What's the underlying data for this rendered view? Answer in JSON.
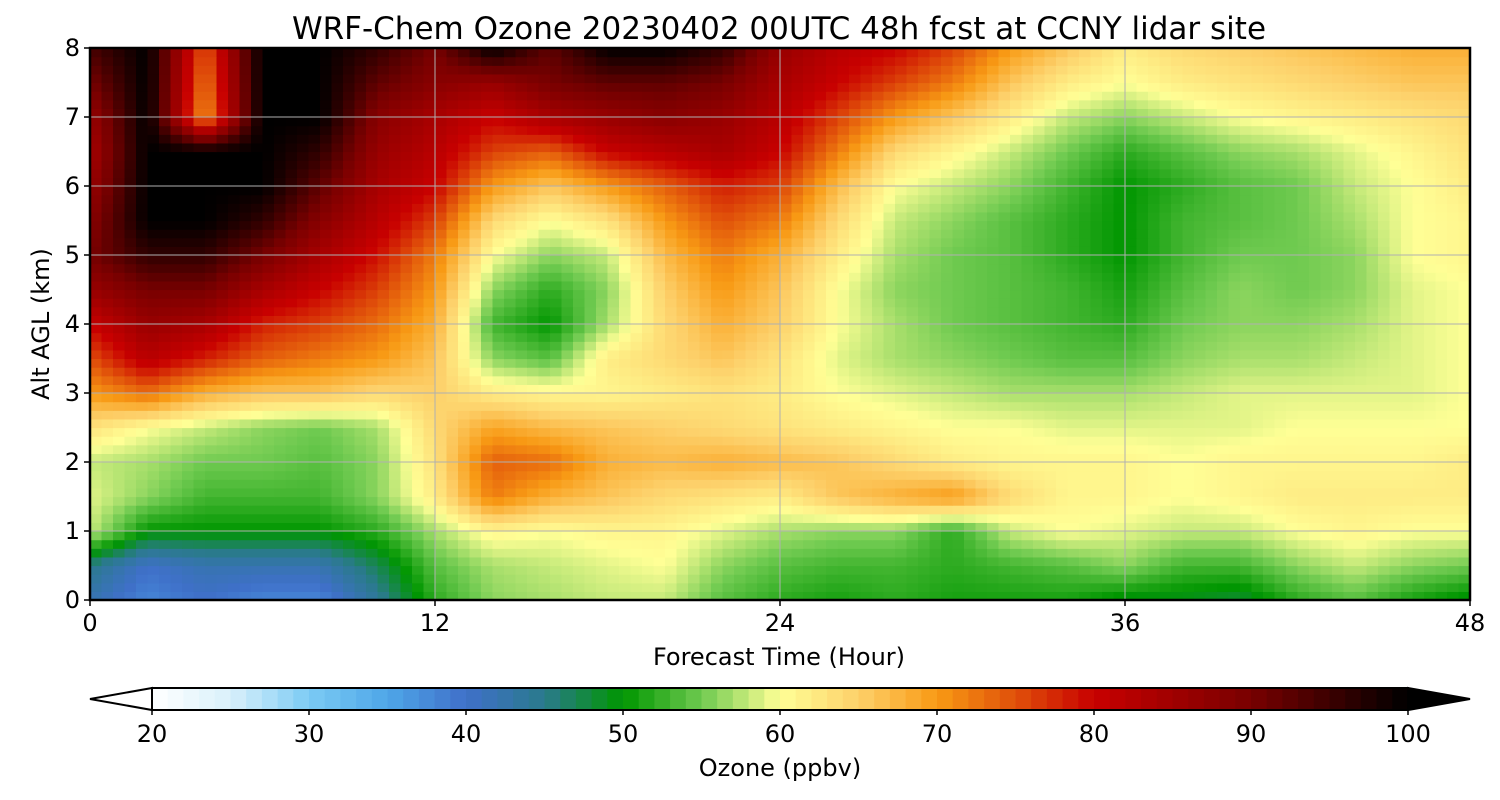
{
  "chart_data": {
    "type": "heatmap",
    "title": "WRF-Chem Ozone  20230402 00UTC 48h fcst at CCNY lidar site",
    "xlabel": "Forecast Time (Hour)",
    "ylabel": "Alt AGL (km)",
    "xlim": [
      0,
      48
    ],
    "ylim": [
      0,
      8
    ],
    "xticks": [
      "0",
      "12",
      "24",
      "36",
      "48"
    ],
    "yticks": [
      "0",
      "1",
      "2",
      "3",
      "4",
      "5",
      "6",
      "7",
      "8"
    ],
    "grid": true,
    "colorbar": {
      "label": "Ozone  (ppbv)",
      "range": [
        20,
        100
      ],
      "extend": "both",
      "ticks": [
        "20",
        "30",
        "40",
        "50",
        "60",
        "70",
        "80",
        "90",
        "100"
      ],
      "colors": {
        "20": "#ffffff",
        "25": "#d9f0fb",
        "30": "#7ccbf4",
        "35": "#4ea6e8",
        "40": "#3f70c9",
        "45": "#2a7a8c",
        "50": "#009600",
        "55": "#6fca50",
        "60": "#ffff96",
        "65": "#fdd06a",
        "70": "#f89a14",
        "75": "#e0500a",
        "80": "#c80000",
        "90": "#780000",
        "100": "#000000"
      }
    },
    "x": [
      0,
      2,
      4,
      6,
      8,
      10,
      12,
      14,
      16,
      18,
      20,
      22,
      24,
      26,
      28,
      30,
      32,
      34,
      36,
      38,
      40,
      42,
      44,
      46,
      48
    ],
    "y": [
      0,
      0.5,
      1,
      1.5,
      2,
      2.5,
      3,
      3.5,
      4,
      4.5,
      5,
      5.5,
      6,
      6.5,
      7,
      7.5,
      8
    ],
    "z": [
      [
        42,
        38,
        40,
        38,
        38,
        44,
        52,
        56,
        57,
        58,
        58,
        54,
        52,
        51,
        52,
        51,
        51,
        51,
        49,
        49,
        48,
        52,
        54,
        51,
        49
      ],
      [
        45,
        40,
        42,
        42,
        42,
        47,
        54,
        57,
        58,
        59,
        60,
        56,
        54,
        53,
        53,
        52,
        53,
        54,
        56,
        53,
        53,
        56,
        58,
        56,
        55
      ],
      [
        58,
        50,
        50,
        50,
        50,
        52,
        57,
        61,
        60,
        61,
        61,
        59,
        57,
        56,
        56,
        52,
        58,
        60,
        59,
        58,
        58,
        60,
        61,
        60,
        60
      ],
      [
        59,
        56,
        53,
        53,
        53,
        56,
        62,
        72,
        68,
        66,
        64,
        63,
        62,
        66,
        68,
        70,
        64,
        61,
        61,
        60,
        61,
        62,
        62,
        62,
        62
      ],
      [
        58,
        57,
        55,
        55,
        54,
        56,
        63,
        74,
        73,
        68,
        67,
        68,
        67,
        66,
        64,
        62,
        61,
        61,
        61,
        60,
        61,
        61,
        61,
        61,
        62
      ],
      [
        63,
        60,
        58,
        56,
        55,
        57,
        64,
        69,
        67,
        66,
        65,
        64,
        63,
        62,
        61,
        60,
        60,
        59,
        59,
        59,
        59,
        60,
        60,
        60,
        60
      ],
      [
        70,
        73,
        68,
        66,
        66,
        64,
        65,
        62,
        61,
        61,
        62,
        63,
        62,
        60,
        59,
        58,
        57,
        57,
        57,
        58,
        59,
        59,
        59,
        59,
        60
      ],
      [
        75,
        82,
        78,
        74,
        72,
        70,
        66,
        56,
        54,
        62,
        64,
        66,
        63,
        59,
        57,
        56,
        55,
        54,
        54,
        56,
        57,
        57,
        58,
        59,
        60
      ],
      [
        80,
        86,
        84,
        78,
        76,
        73,
        68,
        53,
        50,
        57,
        64,
        68,
        65,
        60,
        57,
        55,
        54,
        53,
        52,
        55,
        56,
        56,
        57,
        59,
        60
      ],
      [
        86,
        90,
        90,
        84,
        80,
        76,
        70,
        56,
        52,
        56,
        65,
        70,
        66,
        60,
        56,
        55,
        54,
        53,
        51,
        54,
        56,
        55,
        56,
        59,
        60
      ],
      [
        90,
        96,
        96,
        90,
        84,
        79,
        72,
        60,
        56,
        58,
        67,
        72,
        68,
        62,
        57,
        55,
        54,
        52,
        50,
        53,
        55,
        55,
        56,
        60,
        61
      ],
      [
        88,
        100,
        100,
        96,
        88,
        82,
        76,
        64,
        60,
        63,
        70,
        75,
        72,
        64,
        58,
        56,
        54,
        52,
        50,
        53,
        54,
        55,
        57,
        60,
        61
      ],
      [
        86,
        100,
        100,
        100,
        92,
        84,
        80,
        70,
        66,
        70,
        74,
        78,
        76,
        67,
        60,
        58,
        56,
        53,
        50,
        52,
        54,
        55,
        58,
        60,
        62
      ],
      [
        84,
        100,
        100,
        100,
        96,
        86,
        82,
        76,
        74,
        80,
        82,
        84,
        80,
        72,
        64,
        61,
        58,
        55,
        52,
        54,
        56,
        57,
        59,
        61,
        63
      ],
      [
        86,
        100,
        70,
        100,
        100,
        88,
        84,
        80,
        84,
        86,
        88,
        86,
        82,
        76,
        70,
        66,
        62,
        58,
        56,
        58,
        60,
        61,
        62,
        63,
        64
      ],
      [
        90,
        100,
        72,
        100,
        100,
        92,
        88,
        86,
        90,
        92,
        92,
        90,
        84,
        80,
        76,
        72,
        66,
        62,
        60,
        62,
        63,
        64,
        65,
        66,
        66
      ],
      [
        94,
        100,
        74,
        100,
        100,
        96,
        90,
        100,
        92,
        100,
        100,
        96,
        86,
        82,
        80,
        76,
        70,
        66,
        62,
        64,
        65,
        66,
        67,
        68,
        68
      ]
    ]
  }
}
